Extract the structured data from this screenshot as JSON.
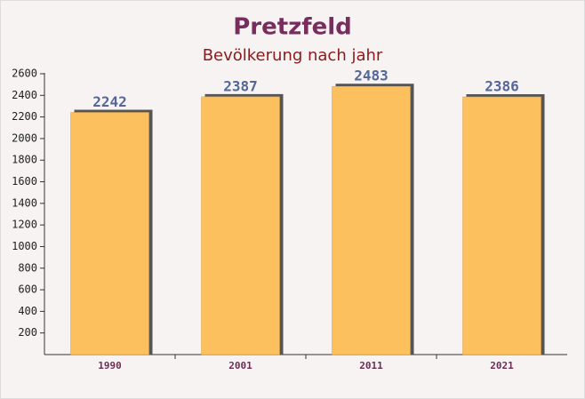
{
  "chart_data": {
    "type": "bar",
    "title": "Pretzfeld",
    "subtitle": "Bevölkerung nach jahr",
    "categories": [
      "1990",
      "2001",
      "2011",
      "2021"
    ],
    "values": [
      2242,
      2387,
      2483,
      2386
    ],
    "color": "#fcc15e",
    "ylim": [
      0,
      2600
    ],
    "yticks": [
      200,
      400,
      600,
      800,
      1000,
      1200,
      1400,
      1600,
      1800,
      2000,
      2200,
      2400,
      2600
    ]
  }
}
